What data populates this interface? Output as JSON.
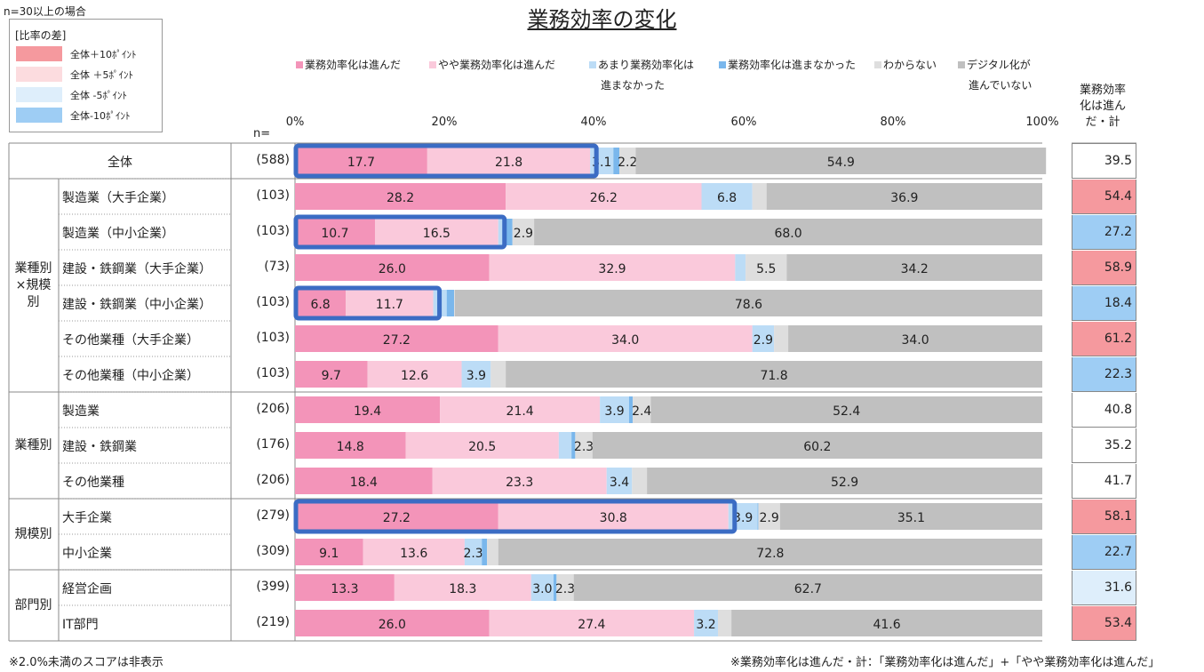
{
  "note_top": "n=30以上の場合",
  "diff_legend": {
    "title": "[比率の差]",
    "items": [
      {
        "label": "全体＋10ﾎﾟｲﾝﾄ",
        "color": "#f5999e"
      },
      {
        "label": "全体 ＋5ﾎﾟｲﾝﾄ",
        "color": "#fcdcdf"
      },
      {
        "label": "全体 -5ﾎﾟｲﾝﾄ",
        "color": "#deeefb"
      },
      {
        "label": "全体-10ﾎﾟｲﾝﾄ",
        "color": "#9ecdf4"
      }
    ]
  },
  "n_label": "n=",
  "sum_header": [
    "業務効率",
    "化は進ん",
    "だ・計"
  ],
  "footnote_left": "※2.0%未満のスコアは非表示",
  "footnote_right": "※業務効率化は進んだ・計：「業務効率化は進んだ」+「やや業務効率化は進んだ」",
  "chart_data": {
    "type": "bar",
    "orientation": "horizontal-stacked-100",
    "title": "業務効率の変化",
    "xlim": [
      0,
      100
    ],
    "x_ticks": [
      "0%",
      "20%",
      "40%",
      "60%",
      "80%",
      "100%"
    ],
    "series": [
      {
        "name": "業務効率化は進んだ",
        "color": "#f394b9"
      },
      {
        "name": "やや業務効率化は進んだ",
        "color": "#fac9db"
      },
      {
        "name": "あまり業務効率化は進まなかった",
        "color": "#bcdcf6"
      },
      {
        "name": "業務効率化は進まなかった",
        "color": "#7ab7ec"
      },
      {
        "name": "わからない",
        "color": "#dedede"
      },
      {
        "name": "デジタル化が進んでいない",
        "color": "#c0c0c0"
      }
    ],
    "legend_lines": [
      [
        "業務効率化は進んだ",
        "やや業務効率化は進んだ",
        "あまり業務効率化は",
        "業務効率化は進まなかった",
        "わからない",
        "デジタル化が"
      ],
      [
        "進まなかった",
        "進んでいない"
      ]
    ],
    "groups": [
      {
        "label": "",
        "rows": [
          0
        ]
      },
      {
        "label": "業種別×規模別",
        "rows": [
          1,
          2,
          3,
          4,
          5,
          6
        ]
      },
      {
        "label": "業種別",
        "rows": [
          7,
          8,
          9
        ]
      },
      {
        "label": "規模別",
        "rows": [
          10,
          11
        ]
      },
      {
        "label": "部門別",
        "rows": [
          12,
          13
        ]
      }
    ],
    "rows": [
      {
        "label": "全体",
        "n": "(588)",
        "values": [
          17.7,
          21.8,
          3.1,
          0.8,
          2.2,
          54.9
        ],
        "labels": [
          "17.7",
          "21.8",
          "3.1",
          "",
          "2.2",
          "54.9"
        ],
        "sum": "39.5",
        "sum_color": "#ffffff",
        "highlight": true
      },
      {
        "label": "製造業（大手企業）",
        "n": "(103)",
        "values": [
          28.2,
          26.2,
          6.8,
          0.0,
          1.9,
          36.9
        ],
        "labels": [
          "28.2",
          "26.2",
          "6.8",
          "",
          "",
          "36.9"
        ],
        "sum": "54.4",
        "sum_color": "#f5999e",
        "highlight": false
      },
      {
        "label": "製造業（中小企業）",
        "n": "(103)",
        "values": [
          10.7,
          16.5,
          1.0,
          0.9,
          2.9,
          68.0
        ],
        "labels": [
          "10.7",
          "16.5",
          "",
          "",
          "2.9",
          "68.0"
        ],
        "sum": "27.2",
        "sum_color": "#9ecdf4",
        "highlight": true
      },
      {
        "label": "建設・鉄鋼業（大手企業）",
        "n": "(73)",
        "values": [
          26.0,
          32.9,
          1.4,
          0.0,
          5.5,
          34.2
        ],
        "labels": [
          "26.0",
          "32.9",
          "",
          "",
          "5.5",
          "34.2"
        ],
        "sum": "58.9",
        "sum_color": "#f5999e",
        "highlight": false
      },
      {
        "label": "建設・鉄鋼業（中小企業）",
        "n": "(103)",
        "values": [
          6.8,
          11.7,
          1.8,
          1.0,
          0.1,
          78.6
        ],
        "labels": [
          "6.8",
          "11.7",
          "",
          "",
          "",
          "78.6"
        ],
        "sum": "18.4",
        "sum_color": "#9ecdf4",
        "highlight": true
      },
      {
        "label": "その他業種（大手企業）",
        "n": "(103)",
        "values": [
          27.2,
          34.0,
          2.9,
          0.0,
          1.9,
          34.0
        ],
        "labels": [
          "27.2",
          "34.0",
          "2.9",
          "",
          "",
          "34.0"
        ],
        "sum": "61.2",
        "sum_color": "#f5999e",
        "highlight": false
      },
      {
        "label": "その他業種（中小企業）",
        "n": "(103)",
        "values": [
          9.7,
          12.6,
          3.9,
          0.0,
          2.0,
          71.8
        ],
        "labels": [
          "9.7",
          "12.6",
          "3.9",
          "",
          "",
          "71.8"
        ],
        "sum": "22.3",
        "sum_color": "#9ecdf4",
        "highlight": false
      },
      {
        "label": "製造業",
        "n": "(206)",
        "values": [
          19.4,
          21.4,
          3.9,
          0.5,
          2.4,
          52.4
        ],
        "labels": [
          "19.4",
          "21.4",
          "3.9",
          "",
          "2.4",
          "52.4"
        ],
        "sum": "40.8",
        "sum_color": "#ffffff",
        "highlight": false
      },
      {
        "label": "建設・鉄鋼業",
        "n": "(176)",
        "values": [
          14.8,
          20.5,
          1.7,
          0.5,
          2.3,
          60.2
        ],
        "labels": [
          "14.8",
          "20.5",
          "",
          "",
          "2.3",
          "60.2"
        ],
        "sum": "35.2",
        "sum_color": "#ffffff",
        "highlight": false
      },
      {
        "label": "その他業種",
        "n": "(206)",
        "values": [
          18.4,
          23.3,
          3.4,
          0.0,
          2.0,
          52.9
        ],
        "labels": [
          "18.4",
          "23.3",
          "3.4",
          "",
          "",
          "52.9"
        ],
        "sum": "41.7",
        "sum_color": "#ffffff",
        "highlight": false
      },
      {
        "label": "大手企業",
        "n": "(279)",
        "values": [
          27.2,
          30.8,
          3.9,
          0.1,
          2.9,
          35.1
        ],
        "labels": [
          "27.2",
          "30.8",
          "3.9",
          "",
          "2.9",
          "35.1"
        ],
        "sum": "58.1",
        "sum_color": "#f5999e",
        "highlight": true
      },
      {
        "label": "中小企業",
        "n": "(309)",
        "values": [
          9.1,
          13.6,
          2.3,
          0.7,
          1.5,
          72.8
        ],
        "labels": [
          "9.1",
          "13.6",
          "2.3",
          "",
          "",
          "72.8"
        ],
        "sum": "22.7",
        "sum_color": "#9ecdf4",
        "highlight": false
      },
      {
        "label": "経営企画",
        "n": "(399)",
        "values": [
          13.3,
          18.3,
          3.0,
          0.4,
          2.3,
          62.7
        ],
        "labels": [
          "13.3",
          "18.3",
          "3.0",
          "",
          "2.3",
          "62.7"
        ],
        "sum": "31.6",
        "sum_color": "#deeefb",
        "highlight": false
      },
      {
        "label": "IT部門",
        "n": "(219)",
        "values": [
          26.0,
          27.4,
          3.2,
          0.0,
          1.8,
          41.6
        ],
        "labels": [
          "26.0",
          "27.4",
          "3.2",
          "",
          "",
          "41.6"
        ],
        "sum": "53.4",
        "sum_color": "#f5999e",
        "highlight": false
      }
    ]
  }
}
